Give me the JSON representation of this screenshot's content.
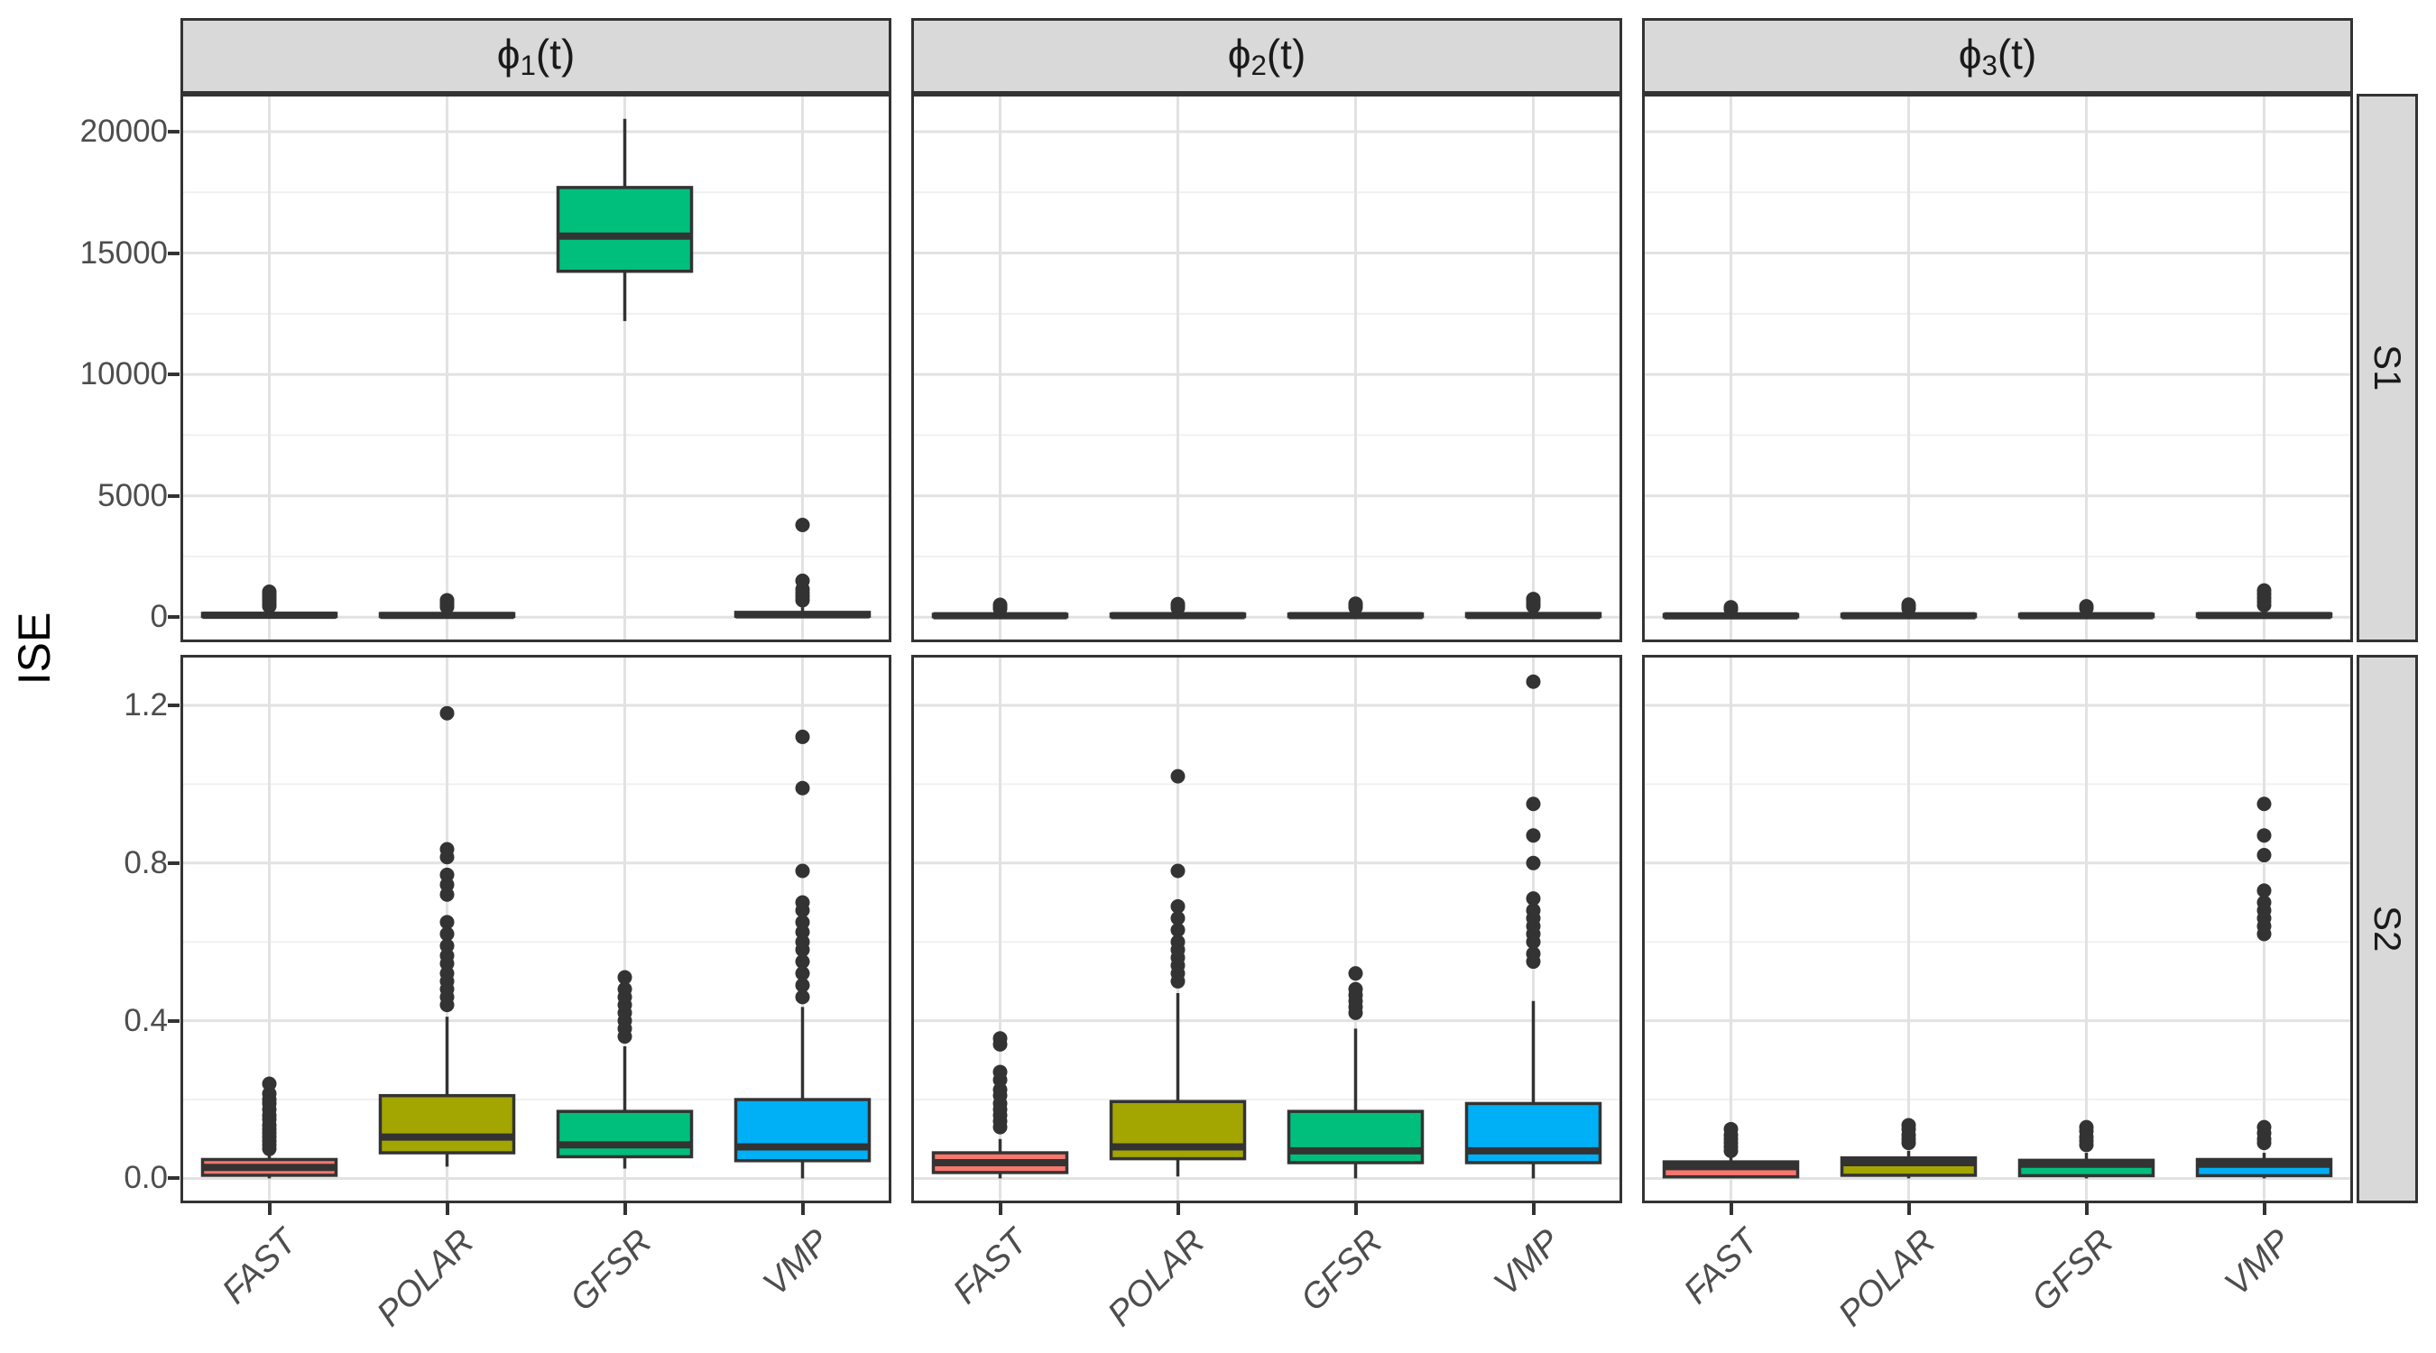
{
  "figure": {
    "ylabel": "ISE"
  },
  "style": {
    "strip_fill": "#D9D9D9",
    "strip_border": "#333333",
    "panel_border": "#333333",
    "grid_major": "#E2E2E2",
    "grid_minor": "#F0F0F0",
    "box_stroke": "#333333",
    "tick_color": "#333333",
    "tick_label_color": "#4D4D4D",
    "fill_colors": {
      "FAST": "#F8766D",
      "POLAR": "#A3A500",
      "GFSR": "#00BF7D",
      "VMP": "#00B0F6"
    }
  },
  "chart_data": {
    "type": "boxplot",
    "layout": "facet_grid: rows S1,S2 (free y) x cols phi1(t),phi2(t),phi3(t); shared categorical x",
    "title": "",
    "ylabel": "ISE",
    "xlabel": "",
    "legend_position": "none",
    "grid": "horizontal major+minor, vertical major at each category",
    "categories": [
      "FAST",
      "POLAR",
      "GFSR",
      "VMP"
    ],
    "facet_cols": [
      {
        "sym": "ϕ",
        "sub": "1",
        "rest": "(t)"
      },
      {
        "sym": "ϕ",
        "sub": "2",
        "rest": "(t)"
      },
      {
        "sym": "ϕ",
        "sub": "3",
        "rest": "(t)"
      }
    ],
    "facet_rows": [
      "S1",
      "S2"
    ],
    "rows": [
      {
        "facet": "S1",
        "ylim": [
          -1030,
          21560
        ],
        "major_ticks": [
          {
            "v": 0,
            "label": "0"
          },
          {
            "v": 5000,
            "label": "5000"
          },
          {
            "v": 10000,
            "label": "10000"
          },
          {
            "v": 15000,
            "label": "15000"
          },
          {
            "v": 20000,
            "label": "20000"
          }
        ],
        "minor_ticks": [
          2500,
          7500,
          12500,
          17500
        ],
        "panels": [
          {
            "col": 0,
            "boxes": [
              {
                "category": "FAST",
                "whislo": 0,
                "q1": 30,
                "med": 80,
                "q3": 160,
                "whishi": 320,
                "outliers": [
                  450,
                  550,
                  650,
                  750,
                  850,
                  950,
                  1050
                ]
              },
              {
                "category": "POLAR",
                "whislo": 0,
                "q1": 30,
                "med": 75,
                "q3": 150,
                "whishi": 300,
                "outliers": [
                  420,
                  520,
                  620,
                  700
                ]
              },
              {
                "category": "GFSR",
                "whislo": 12200,
                "q1": 14250,
                "med": 15700,
                "q3": 17700,
                "whishi": 20530,
                "outliers": []
              },
              {
                "category": "VMP",
                "whislo": 0,
                "q1": 40,
                "med": 100,
                "q3": 200,
                "whishi": 400,
                "outliers": [
                  700,
                  850,
                  1000,
                  1150,
                  1500,
                  3800
                ]
              }
            ]
          },
          {
            "col": 1,
            "boxes": [
              {
                "category": "FAST",
                "whislo": 0,
                "q1": 20,
                "med": 60,
                "q3": 120,
                "whishi": 250,
                "outliers": [
                  350,
                  430,
                  510
                ]
              },
              {
                "category": "POLAR",
                "whislo": 0,
                "q1": 25,
                "med": 65,
                "q3": 130,
                "whishi": 260,
                "outliers": [
                  380,
                  460,
                  540
                ]
              },
              {
                "category": "GFSR",
                "whislo": 0,
                "q1": 25,
                "med": 65,
                "q3": 130,
                "whishi": 260,
                "outliers": [
                  400,
                  480,
                  560
                ]
              },
              {
                "category": "VMP",
                "whislo": 0,
                "q1": 30,
                "med": 70,
                "q3": 150,
                "whishi": 300,
                "outliers": [
                  450,
                  550,
                  650,
                  750
                ]
              }
            ]
          },
          {
            "col": 2,
            "boxes": [
              {
                "category": "FAST",
                "whislo": 0,
                "q1": 20,
                "med": 55,
                "q3": 110,
                "whishi": 230,
                "outliers": [
                  330,
                  410
                ]
              },
              {
                "category": "POLAR",
                "whislo": 0,
                "q1": 25,
                "med": 60,
                "q3": 120,
                "whishi": 250,
                "outliers": [
                  360,
                  440,
                  520
                ]
              },
              {
                "category": "GFSR",
                "whislo": 0,
                "q1": 25,
                "med": 60,
                "q3": 120,
                "whishi": 250,
                "outliers": [
                  370,
                  450
                ]
              },
              {
                "category": "VMP",
                "whislo": 0,
                "q1": 30,
                "med": 70,
                "q3": 140,
                "whishi": 280,
                "outliers": [
                  500,
                  650,
                  800,
                  950,
                  1100
                ]
              }
            ]
          }
        ]
      },
      {
        "facet": "S2",
        "ylim": [
          -0.063,
          1.328
        ],
        "major_ticks": [
          {
            "v": 0,
            "label": "0.0"
          },
          {
            "v": 0.4,
            "label": "0.4"
          },
          {
            "v": 0.8,
            "label": "0.8"
          },
          {
            "v": 1.2,
            "label": "1.2"
          }
        ],
        "minor_ticks": [
          0.2,
          0.6,
          1.0
        ],
        "panels": [
          {
            "col": 0,
            "boxes": [
              {
                "category": "FAST",
                "whislo": 0,
                "q1": 0.008,
                "med": 0.028,
                "q3": 0.048,
                "whishi": 0.062,
                "outliers": [
                  0.075,
                  0.085,
                  0.095,
                  0.105,
                  0.115,
                  0.125,
                  0.135,
                  0.15,
                  0.16,
                  0.175,
                  0.19,
                  0.2,
                  0.215,
                  0.24
                ]
              },
              {
                "category": "POLAR",
                "whislo": 0.03,
                "q1": 0.065,
                "med": 0.105,
                "q3": 0.21,
                "whishi": 0.41,
                "outliers": [
                  0.44,
                  0.46,
                  0.48,
                  0.5,
                  0.52,
                  0.545,
                  0.565,
                  0.59,
                  0.62,
                  0.65,
                  0.72,
                  0.745,
                  0.77,
                  0.815,
                  0.835,
                  1.18
                ]
              },
              {
                "category": "GFSR",
                "whislo": 0.025,
                "q1": 0.055,
                "med": 0.085,
                "q3": 0.17,
                "whishi": 0.335,
                "outliers": [
                  0.36,
                  0.38,
                  0.4,
                  0.42,
                  0.44,
                  0.46,
                  0.48,
                  0.51
                ]
              },
              {
                "category": "VMP",
                "whislo": 0,
                "q1": 0.045,
                "med": 0.08,
                "q3": 0.2,
                "whishi": 0.435,
                "outliers": [
                  0.46,
                  0.49,
                  0.52,
                  0.55,
                  0.58,
                  0.6,
                  0.625,
                  0.65,
                  0.68,
                  0.7,
                  0.78,
                  0.99,
                  1.12
                ]
              }
            ]
          },
          {
            "col": 1,
            "boxes": [
              {
                "category": "FAST",
                "whislo": 0,
                "q1": 0.015,
                "med": 0.04,
                "q3": 0.065,
                "whishi": 0.1,
                "outliers": [
                  0.13,
                  0.145,
                  0.16,
                  0.175,
                  0.19,
                  0.21,
                  0.225,
                  0.25,
                  0.27,
                  0.34,
                  0.355
                ]
              },
              {
                "category": "POLAR",
                "whislo": 0.005,
                "q1": 0.05,
                "med": 0.08,
                "q3": 0.195,
                "whishi": 0.47,
                "outliers": [
                  0.5,
                  0.52,
                  0.54,
                  0.56,
                  0.58,
                  0.6,
                  0.63,
                  0.66,
                  0.69,
                  0.78,
                  1.02
                ]
              },
              {
                "category": "GFSR",
                "whislo": 0,
                "q1": 0.04,
                "med": 0.07,
                "q3": 0.17,
                "whishi": 0.38,
                "outliers": [
                  0.42,
                  0.435,
                  0.45,
                  0.465,
                  0.48,
                  0.52
                ]
              },
              {
                "category": "VMP",
                "whislo": 0,
                "q1": 0.04,
                "med": 0.07,
                "q3": 0.19,
                "whishi": 0.45,
                "outliers": [
                  0.55,
                  0.57,
                  0.6,
                  0.62,
                  0.64,
                  0.66,
                  0.68,
                  0.71,
                  0.8,
                  0.87,
                  0.95,
                  1.26
                ]
              }
            ]
          },
          {
            "col": 2,
            "boxes": [
              {
                "category": "FAST",
                "whislo": 0,
                "q1": 0.004,
                "med": 0.03,
                "q3": 0.042,
                "whishi": 0.055,
                "outliers": [
                  0.07,
                  0.08,
                  0.09,
                  0.1,
                  0.11,
                  0.125
                ]
              },
              {
                "category": "POLAR",
                "whislo": 0,
                "q1": 0.008,
                "med": 0.04,
                "q3": 0.052,
                "whishi": 0.07,
                "outliers": [
                  0.09,
                  0.1,
                  0.11,
                  0.125,
                  0.135
                ]
              },
              {
                "category": "GFSR",
                "whislo": 0,
                "q1": 0.007,
                "med": 0.036,
                "q3": 0.046,
                "whishi": 0.065,
                "outliers": [
                  0.085,
                  0.095,
                  0.105,
                  0.12,
                  0.13
                ]
              },
              {
                "category": "VMP",
                "whislo": 0,
                "q1": 0.007,
                "med": 0.036,
                "q3": 0.048,
                "whishi": 0.065,
                "outliers": [
                  0.09,
                  0.1,
                  0.115,
                  0.13,
                  0.62,
                  0.64,
                  0.66,
                  0.68,
                  0.7,
                  0.73,
                  0.82,
                  0.87,
                  0.95
                ]
              }
            ]
          }
        ]
      }
    ]
  }
}
